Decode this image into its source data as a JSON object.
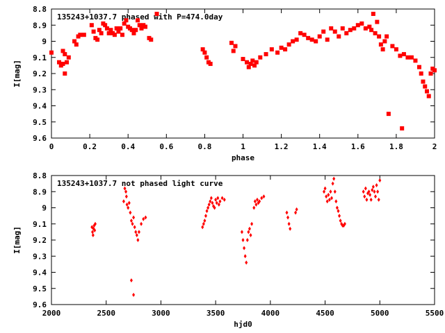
{
  "colors": {
    "points": "#ff0000",
    "axes": "#000000",
    "background": "#ffffff"
  },
  "chart_data": [
    {
      "type": "scatter",
      "title": "135243+1037.7 phased with P=474.0day",
      "xlabel": "phase",
      "ylabel": "I[mag]",
      "xlim": [
        0,
        2
      ],
      "ylim": [
        9.6,
        8.8
      ],
      "y_inverted": true,
      "xticks": [
        "0",
        "0.2",
        "0.4",
        "0.6",
        "0.8",
        "1",
        "1.2",
        "1.4",
        "1.6",
        "1.8",
        "2"
      ],
      "xtick_values": [
        0,
        0.2,
        0.4,
        0.6,
        0.8,
        1.0,
        1.2,
        1.4,
        1.6,
        1.8,
        2.0
      ],
      "yticks": [
        "8.8",
        "8.9",
        "9",
        "9.1",
        "9.2",
        "9.3",
        "9.4",
        "9.5",
        "9.6"
      ],
      "ytick_values": [
        8.8,
        8.9,
        9.0,
        9.1,
        9.2,
        9.3,
        9.4,
        9.5,
        9.6
      ],
      "marker": "filled-square",
      "series": [
        {
          "x": [
            0.0,
            0.04,
            0.05,
            0.06,
            0.07,
            0.08,
            0.06,
            0.07,
            0.09,
            0.12,
            0.13,
            0.14,
            0.15,
            0.17,
            0.21,
            0.22,
            0.23,
            0.24,
            0.25,
            0.26,
            0.27,
            0.28,
            0.29,
            0.3,
            0.31,
            0.32,
            0.33,
            0.34,
            0.35,
            0.36,
            0.37,
            0.38,
            0.39,
            0.4,
            0.41,
            0.42,
            0.43,
            0.44,
            0.45,
            0.46,
            0.47,
            0.48,
            0.49,
            0.51,
            0.52,
            0.55,
            0.79,
            0.8,
            0.81,
            0.82,
            0.83,
            0.94,
            0.95,
            0.96,
            1.0,
            1.02,
            1.03,
            1.04,
            1.05,
            1.06,
            1.07,
            1.09,
            1.12,
            1.15,
            1.18,
            1.2,
            1.22,
            1.24,
            1.26,
            1.28,
            1.3,
            1.32,
            1.34,
            1.36,
            1.38,
            1.4,
            1.42,
            1.44,
            1.46,
            1.48,
            1.5,
            1.52,
            1.54,
            1.56,
            1.58,
            1.6,
            1.62,
            1.64,
            1.66,
            1.67,
            1.68,
            1.69,
            1.7,
            1.71,
            1.72,
            1.73,
            1.74,
            1.75,
            1.76,
            1.78,
            1.8,
            1.82,
            1.83,
            1.84,
            1.86,
            1.88,
            1.9,
            1.92,
            1.93,
            1.94,
            1.95,
            1.96,
            1.97,
            1.98,
            1.99,
            2.0
          ],
          "y": [
            9.07,
            9.13,
            9.15,
            9.14,
            9.2,
            9.13,
            9.06,
            9.08,
            9.1,
            9.0,
            9.02,
            8.97,
            8.96,
            8.96,
            8.9,
            8.94,
            8.98,
            8.99,
            8.93,
            8.95,
            8.89,
            8.9,
            8.92,
            8.95,
            8.93,
            8.95,
            8.96,
            8.92,
            8.94,
            8.92,
            8.96,
            8.89,
            8.87,
            8.91,
            8.92,
            8.93,
            8.95,
            8.93,
            8.87,
            8.9,
            8.92,
            8.9,
            8.91,
            8.98,
            8.99,
            8.83,
            9.05,
            9.07,
            9.1,
            9.13,
            9.14,
            9.01,
            9.06,
            9.03,
            9.11,
            9.13,
            9.16,
            9.14,
            9.12,
            9.15,
            9.13,
            9.1,
            9.08,
            9.05,
            9.07,
            9.04,
            9.05,
            9.02,
            9.0,
            8.99,
            8.95,
            8.96,
            8.98,
            8.99,
            9.0,
            8.97,
            8.94,
            8.99,
            8.92,
            8.94,
            8.97,
            8.92,
            8.95,
            8.93,
            8.92,
            8.9,
            8.89,
            8.92,
            8.91,
            8.93,
            8.83,
            8.95,
            8.88,
            8.97,
            9.02,
            9.05,
            9.0,
            8.97,
            9.45,
            9.03,
            9.05,
            9.09,
            9.54,
            9.08,
            9.1,
            9.1,
            9.12,
            9.16,
            9.2,
            9.25,
            9.28,
            9.31,
            9.34,
            9.2,
            9.17,
            9.18
          ]
        }
      ]
    },
    {
      "type": "scatter",
      "title": "135243+1037.7 not phased light curve",
      "xlabel": "hjd0",
      "ylabel": "I[mag]",
      "xlim": [
        2000,
        5500
      ],
      "ylim": [
        9.6,
        8.8
      ],
      "y_inverted": true,
      "xticks": [
        "2000",
        "2500",
        "3000",
        "3500",
        "4000",
        "4500",
        "5000",
        "5500"
      ],
      "xtick_values": [
        2000,
        2500,
        3000,
        3500,
        4000,
        4500,
        5000,
        5500
      ],
      "yticks": [
        "8.8",
        "8.9",
        "9",
        "9.1",
        "9.2",
        "9.3",
        "9.4",
        "9.5",
        "9.6"
      ],
      "ytick_values": [
        8.8,
        8.9,
        9.0,
        9.1,
        9.2,
        9.3,
        9.4,
        9.5,
        9.6
      ],
      "marker": "filled-diamond",
      "series": [
        {
          "x": [
            2370,
            2375,
            2380,
            2385,
            2390,
            2395,
            2400,
            2660,
            2670,
            2680,
            2685,
            2690,
            2700,
            2710,
            2720,
            2730,
            2740,
            2750,
            2760,
            2770,
            2780,
            2790,
            2800,
            2820,
            2840,
            2860,
            2730,
            2750,
            3380,
            3390,
            3400,
            3410,
            3420,
            3430,
            3440,
            3450,
            3460,
            3470,
            3480,
            3490,
            3500,
            3510,
            3520,
            3530,
            3540,
            3560,
            3580,
            3740,
            3750,
            3760,
            3770,
            3780,
            3790,
            3800,
            3810,
            3820,
            3830,
            3850,
            3860,
            3870,
            3880,
            3890,
            3900,
            3920,
            3940,
            4150,
            4160,
            4170,
            4180,
            4230,
            4240,
            4490,
            4500,
            4510,
            4520,
            4530,
            4540,
            4550,
            4560,
            4570,
            4580,
            4590,
            4600,
            4610,
            4620,
            4630,
            4640,
            4650,
            4660,
            4670,
            4680,
            4850,
            4860,
            4870,
            4880,
            4890,
            4900,
            4910,
            4920,
            4930,
            4940,
            4950,
            4960,
            4970,
            4980,
            4990,
            5000
          ],
          "y": [
            9.12,
            9.15,
            9.17,
            9.13,
            9.11,
            9.14,
            9.1,
            8.96,
            8.88,
            8.9,
            8.93,
            8.98,
            9.0,
            8.97,
            9.03,
            9.08,
            9.1,
            9.06,
            9.12,
            9.15,
            9.17,
            9.2,
            9.15,
            9.1,
            9.07,
            9.06,
            9.45,
            9.54,
            9.12,
            9.1,
            9.08,
            9.05,
            9.02,
            9.0,
            8.98,
            8.96,
            8.94,
            8.97,
            8.99,
            9.0,
            8.95,
            8.97,
            8.94,
            8.98,
            8.96,
            8.94,
            8.95,
            9.15,
            9.2,
            9.25,
            9.3,
            9.34,
            9.2,
            9.15,
            9.13,
            9.17,
            9.1,
            9.0,
            8.96,
            8.98,
            8.95,
            8.97,
            8.96,
            8.94,
            8.93,
            9.03,
            9.06,
            9.1,
            9.13,
            9.03,
            9.01,
            8.9,
            8.88,
            8.93,
            8.96,
            8.92,
            8.95,
            8.9,
            8.94,
            8.85,
            8.82,
            8.9,
            8.96,
            9.0,
            9.02,
            9.05,
            9.08,
            9.1,
            9.11,
            9.11,
            9.1,
            8.9,
            8.93,
            8.88,
            8.95,
            8.91,
            8.9,
            8.92,
            8.95,
            8.89,
            8.87,
            8.9,
            8.93,
            8.86,
            8.9,
            8.95,
            8.83
          ]
        }
      ]
    }
  ]
}
